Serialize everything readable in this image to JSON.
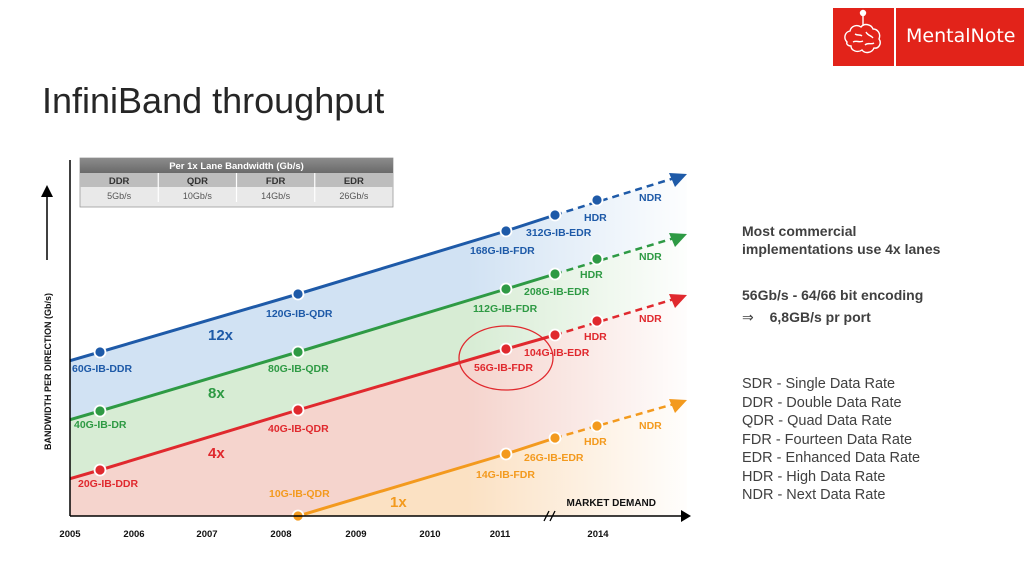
{
  "brand": {
    "name": "MentalNote",
    "logo_icon": "brain-icon"
  },
  "slide": {
    "title": "InfiniBand throughput"
  },
  "notes": {
    "line1a": "Most commercial",
    "line1b": "implementations use 4x lanes",
    "line2": "56Gb/s - 64/66 bit encoding",
    "arrow": "⇒",
    "line3": "6,8GB/s pr port",
    "abbreviations": [
      "SDR - Single Data Rate",
      "DDR - Double Data Rate",
      "QDR - Quad Data Rate",
      "FDR - Fourteen Data Rate",
      "EDR - Enhanced Data Rate",
      "HDR - High Data Rate",
      "NDR - Next Data Rate"
    ]
  },
  "chart_data": {
    "type": "line",
    "ylabel": "BANDWIDTH PER DIRECTION (Gb/s)",
    "x_axis_label": "MARKET DEMAND",
    "x_ticks": [
      "2005",
      "2006",
      "2007",
      "2008",
      "2009",
      "2010",
      "2011",
      "2014"
    ],
    "table": {
      "title": "Per 1x Lane Bandwidth (Gb/s)",
      "headers": [
        "DDR",
        "QDR",
        "FDR",
        "EDR"
      ],
      "values": [
        "5Gb/s",
        "10Gb/s",
        "14Gb/s",
        "26Gb/s"
      ]
    },
    "series": [
      {
        "name": "12x",
        "color": "#1e5aa8",
        "points": [
          "60G-IB-DDR",
          "120G-IB-QDR",
          "168G-IB-FDR",
          "312G-IB-EDR",
          "HDR",
          "NDR"
        ]
      },
      {
        "name": "8x",
        "color": "#2e9a44",
        "points": [
          "40G-IB-DR",
          "80G-IB-QDR",
          "112G-IB-FDR",
          "208G-IB-EDR",
          "HDR",
          "NDR"
        ]
      },
      {
        "name": "4x",
        "color": "#e0292e",
        "points": [
          "20G-IB-DDR",
          "40G-IB-QDR",
          "56G-IB-FDR",
          "104G-IB-EDR",
          "HDR",
          "NDR"
        ]
      },
      {
        "name": "1x",
        "color": "#f39a1e",
        "points": [
          "10G-IB-QDR",
          "14G-IB-FDR",
          "26G-IB-EDR",
          "HDR",
          "NDR"
        ]
      }
    ],
    "highlight": "56G-IB-FDR"
  }
}
